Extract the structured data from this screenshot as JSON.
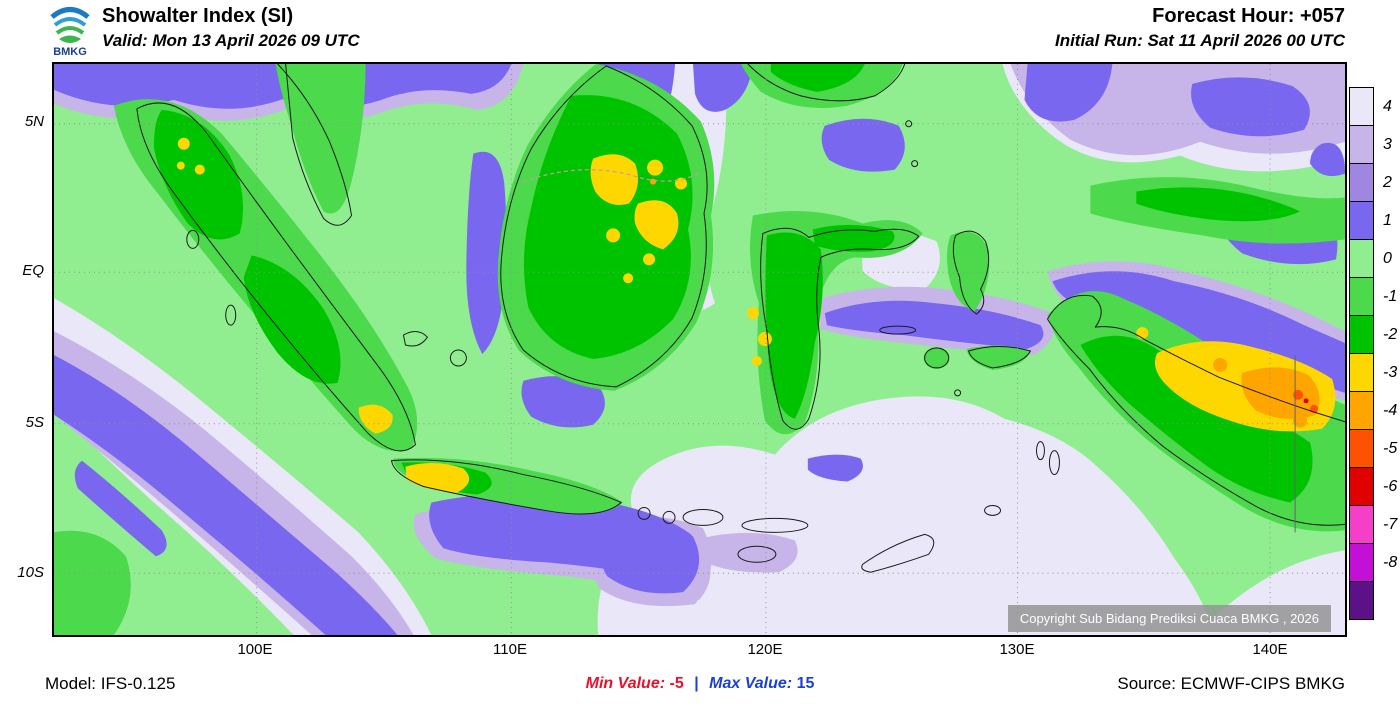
{
  "header": {
    "logo": "BMKG",
    "title": "Showalter Index (SI)",
    "valid": "Valid: Mon 13 April 2026 09 UTC",
    "forecast_hour": "Forecast Hour: +057",
    "initial_run": "Initial Run: Sat 11 April 2026 00 UTC"
  },
  "map": {
    "lat_labels": [
      "5N",
      "EQ",
      "5S",
      "10S"
    ],
    "lon_labels": [
      "100E",
      "110E",
      "120E",
      "130E",
      "140E"
    ],
    "copyright": "Copyright Sub Bidang Prediksi Cuaca BMKG , 2026"
  },
  "legend": {
    "labels": [
      "4",
      "3",
      "2",
      "1",
      "0",
      "-1",
      "-2",
      "-3",
      "-4",
      "-5",
      "-6",
      "-7",
      "-8"
    ],
    "colors": [
      "#EAE7F8",
      "#C7B4E9",
      "#9F86E0",
      "#7A67EF",
      "#90EE90",
      "#4CD94C",
      "#00C300",
      "#FFD700",
      "#FFA500",
      "#FF5200",
      "#E00000",
      "#F43FC8",
      "#C githubD?",
      "#5C1186"
    ]
  },
  "footer": {
    "model": "Model: IFS-0.125",
    "min_label": "Min Value:",
    "min_value": "-5",
    "separator": "|",
    "max_label": "Max Value:",
    "max_value": "15",
    "source": "Source: ECMWF-CIPS BMKG",
    "min_color": "#e8112d",
    "max_color": "#1b3fd0"
  },
  "chart_data": {
    "type": "heatmap",
    "title": "Showalter Index (SI)",
    "x_ticks": [
      "100E",
      "110E",
      "120E",
      "130E",
      "140E"
    ],
    "y_ticks": [
      "5N",
      "EQ",
      "5S",
      "10S"
    ],
    "levels": [
      4,
      3,
      2,
      1,
      0,
      -1,
      -2,
      -3,
      -4,
      -5,
      -6,
      -7,
      -8
    ],
    "min_value": -5,
    "max_value": 15,
    "legend_position": "right",
    "region": "Indonesia"
  }
}
